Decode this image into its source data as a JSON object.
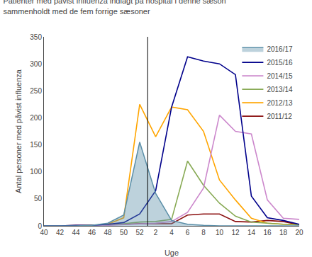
{
  "chart_data": {
    "type": "line",
    "title": "Patienter med påvist influenza indlagt på hospital i denne sæson\nsammenholdt med de fem forrige sæsoner",
    "xlabel": "Uge",
    "ylabel": "Antal personer med påvist influenza",
    "categories": [
      "40",
      "42",
      "44",
      "46",
      "48",
      "50",
      "52",
      "2",
      "4",
      "6",
      "8",
      "10",
      "12",
      "14",
      "16",
      "18",
      "20"
    ],
    "series": [
      {
        "name": "2016/17",
        "color": "#5b8fa8",
        "type": "area",
        "values": [
          0,
          0,
          0,
          1,
          5,
          20,
          155,
          60,
          10,
          3,
          1,
          0,
          0,
          0,
          0,
          0,
          0
        ]
      },
      {
        "name": "2015/16",
        "color": "#00008B",
        "type": "line",
        "values": [
          0,
          0,
          1,
          1,
          3,
          6,
          22,
          65,
          220,
          313,
          305,
          300,
          280,
          55,
          15,
          10,
          3
        ]
      },
      {
        "name": "2014/15",
        "color": "#cc88cc",
        "type": "line",
        "values": [
          0,
          0,
          0,
          0,
          1,
          2,
          4,
          5,
          8,
          25,
          70,
          205,
          175,
          170,
          48,
          14,
          12
        ]
      },
      {
        "name": "2013/14",
        "color": "#88aa55",
        "type": "line",
        "values": [
          0,
          0,
          0,
          1,
          2,
          4,
          7,
          8,
          12,
          120,
          75,
          42,
          18,
          7,
          5,
          3,
          2
        ]
      },
      {
        "name": "2012/13",
        "color": "#FFA500",
        "type": "line",
        "values": [
          0,
          0,
          0,
          1,
          3,
          15,
          225,
          165,
          220,
          215,
          175,
          85,
          48,
          14,
          5,
          3,
          2
        ]
      },
      {
        "name": "2011/12",
        "color": "#8B1010",
        "type": "line",
        "values": [
          0,
          0,
          1,
          1,
          2,
          3,
          4,
          4,
          4,
          20,
          22,
          22,
          8,
          7,
          10,
          8,
          2
        ]
      }
    ],
    "ylim": [
      0,
      350
    ],
    "yticks": [
      0,
      50,
      100,
      150,
      200,
      250,
      300,
      350
    ],
    "grid": false,
    "legend": "upper right"
  }
}
